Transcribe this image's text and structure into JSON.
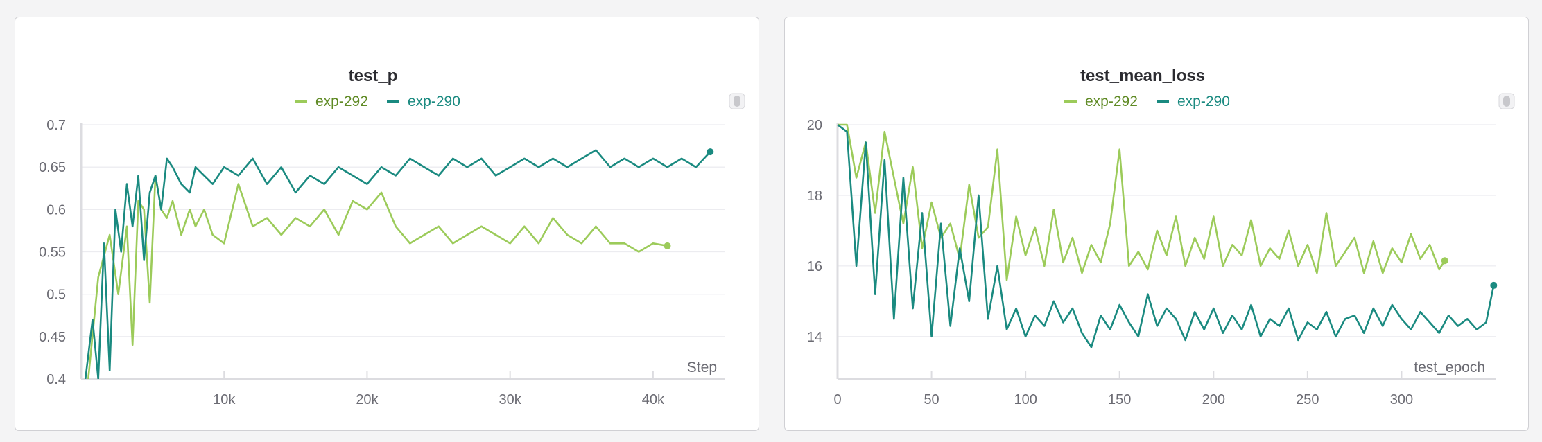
{
  "chart_data": [
    {
      "type": "line",
      "title": "test_p",
      "xlabel": "Step",
      "ylabel": "",
      "xlim": [
        0,
        45000
      ],
      "ylim": [
        0.4,
        0.7
      ],
      "x_ticks": [
        10000,
        20000,
        30000,
        40000
      ],
      "x_tick_labels": [
        "10k",
        "20k",
        "30k",
        "40k"
      ],
      "y_ticks": [
        0.4,
        0.45,
        0.5,
        0.55,
        0.6,
        0.65,
        0.7
      ],
      "y_tick_labels": [
        "0.4",
        "0.45",
        "0.5",
        "0.55",
        "0.6",
        "0.65",
        "0.7"
      ],
      "grid": true,
      "legend_position": "top-center",
      "series": [
        {
          "name": "exp-292",
          "color": "#9ccb5a",
          "x": [
            500,
            1200,
            2000,
            2600,
            3200,
            3600,
            4000,
            4400,
            4800,
            5200,
            5600,
            6000,
            6400,
            7000,
            7600,
            8000,
            8600,
            9200,
            10000,
            11000,
            12000,
            13000,
            14000,
            15000,
            16000,
            17000,
            18000,
            19000,
            20000,
            21000,
            22000,
            23000,
            24000,
            25000,
            26000,
            27000,
            28000,
            29000,
            30000,
            31000,
            32000,
            33000,
            34000,
            35000,
            36000,
            37000,
            38000,
            39000,
            40000,
            41000
          ],
          "y": [
            0.4,
            0.52,
            0.57,
            0.5,
            0.58,
            0.44,
            0.61,
            0.6,
            0.49,
            0.64,
            0.6,
            0.59,
            0.61,
            0.57,
            0.6,
            0.58,
            0.6,
            0.57,
            0.56,
            0.63,
            0.58,
            0.59,
            0.57,
            0.59,
            0.58,
            0.6,
            0.57,
            0.61,
            0.6,
            0.62,
            0.58,
            0.56,
            0.57,
            0.58,
            0.56,
            0.57,
            0.58,
            0.57,
            0.56,
            0.58,
            0.56,
            0.59,
            0.57,
            0.56,
            0.58,
            0.56,
            0.56,
            0.55,
            0.56,
            0.557
          ]
        },
        {
          "name": "exp-290",
          "color": "#1a8a80",
          "x": [
            300,
            800,
            1200,
            1600,
            2000,
            2400,
            2800,
            3200,
            3600,
            4000,
            4400,
            4800,
            5200,
            5600,
            6000,
            6400,
            7000,
            7600,
            8000,
            8600,
            9200,
            10000,
            11000,
            12000,
            13000,
            14000,
            15000,
            16000,
            17000,
            18000,
            19000,
            20000,
            21000,
            22000,
            23000,
            24000,
            25000,
            26000,
            27000,
            28000,
            29000,
            30000,
            31000,
            32000,
            33000,
            34000,
            35000,
            36000,
            37000,
            38000,
            39000,
            40000,
            41000,
            42000,
            43000,
            44000
          ],
          "y": [
            0.4,
            0.47,
            0.4,
            0.56,
            0.41,
            0.6,
            0.55,
            0.63,
            0.58,
            0.64,
            0.54,
            0.62,
            0.64,
            0.6,
            0.66,
            0.65,
            0.63,
            0.62,
            0.65,
            0.64,
            0.63,
            0.65,
            0.64,
            0.66,
            0.63,
            0.65,
            0.62,
            0.64,
            0.63,
            0.65,
            0.64,
            0.63,
            0.65,
            0.64,
            0.66,
            0.65,
            0.64,
            0.66,
            0.65,
            0.66,
            0.64,
            0.65,
            0.66,
            0.65,
            0.66,
            0.65,
            0.66,
            0.67,
            0.65,
            0.66,
            0.65,
            0.66,
            0.65,
            0.66,
            0.65,
            0.668
          ]
        }
      ]
    },
    {
      "type": "line",
      "title": "test_mean_loss",
      "xlabel": "test_epoch",
      "ylabel": "",
      "xlim": [
        0,
        350
      ],
      "ylim": [
        12.8,
        20
      ],
      "x_ticks": [
        0,
        50,
        100,
        150,
        200,
        250,
        300
      ],
      "x_tick_labels": [
        "0",
        "50",
        "100",
        "150",
        "200",
        "250",
        "300"
      ],
      "y_ticks": [
        14,
        16,
        18,
        20
      ],
      "y_tick_labels": [
        "14",
        "16",
        "18",
        "20"
      ],
      "grid": true,
      "legend_position": "top-center",
      "series": [
        {
          "name": "exp-292",
          "color": "#9ccb5a",
          "x": [
            0,
            5,
            10,
            15,
            20,
            25,
            30,
            35,
            40,
            45,
            50,
            55,
            60,
            65,
            70,
            75,
            80,
            85,
            90,
            95,
            100,
            105,
            110,
            115,
            120,
            125,
            130,
            135,
            140,
            145,
            150,
            155,
            160,
            165,
            170,
            175,
            180,
            185,
            190,
            195,
            200,
            205,
            210,
            215,
            220,
            225,
            230,
            235,
            240,
            245,
            250,
            255,
            260,
            265,
            270,
            275,
            280,
            285,
            290,
            295,
            300,
            305,
            310,
            315,
            320,
            323
          ],
          "y": [
            20,
            20,
            18.5,
            19.5,
            17.5,
            19.8,
            18.5,
            17.2,
            18.8,
            16.5,
            17.8,
            16.8,
            17.2,
            16.2,
            18.3,
            16.8,
            17.1,
            19.3,
            15.6,
            17.4,
            16.3,
            17.1,
            16.0,
            17.6,
            16.1,
            16.8,
            15.8,
            16.6,
            16.1,
            17.2,
            19.3,
            16.0,
            16.4,
            15.9,
            17.0,
            16.3,
            17.4,
            16.0,
            16.8,
            16.2,
            17.4,
            16.0,
            16.6,
            16.3,
            17.3,
            16.0,
            16.5,
            16.2,
            17.0,
            16.0,
            16.6,
            15.8,
            17.5,
            16.0,
            16.4,
            16.8,
            15.8,
            16.7,
            15.8,
            16.5,
            16.1,
            16.9,
            16.2,
            16.6,
            15.9,
            16.15
          ]
        },
        {
          "name": "exp-290",
          "color": "#1a8a80",
          "x": [
            0,
            5,
            10,
            15,
            20,
            25,
            30,
            35,
            40,
            45,
            50,
            55,
            60,
            65,
            70,
            75,
            80,
            85,
            90,
            95,
            100,
            105,
            110,
            115,
            120,
            125,
            130,
            135,
            140,
            145,
            150,
            155,
            160,
            165,
            170,
            175,
            180,
            185,
            190,
            195,
            200,
            205,
            210,
            215,
            220,
            225,
            230,
            235,
            240,
            245,
            250,
            255,
            260,
            265,
            270,
            275,
            280,
            285,
            290,
            295,
            300,
            305,
            310,
            315,
            320,
            325,
            330,
            335,
            340,
            345,
            349
          ],
          "y": [
            20,
            19.8,
            16.0,
            19.5,
            15.2,
            19.0,
            14.5,
            18.5,
            14.8,
            17.5,
            14.0,
            17.2,
            14.3,
            16.5,
            15.0,
            18.0,
            14.5,
            16.0,
            14.2,
            14.8,
            14.0,
            14.6,
            14.3,
            15.0,
            14.4,
            14.8,
            14.1,
            13.7,
            14.6,
            14.2,
            14.9,
            14.4,
            14.0,
            15.2,
            14.3,
            14.8,
            14.5,
            13.9,
            14.7,
            14.2,
            14.8,
            14.1,
            14.6,
            14.2,
            14.9,
            14.0,
            14.5,
            14.3,
            14.8,
            13.9,
            14.4,
            14.2,
            14.7,
            14.0,
            14.5,
            14.6,
            14.1,
            14.8,
            14.3,
            14.9,
            14.5,
            14.2,
            14.7,
            14.4,
            14.1,
            14.6,
            14.3,
            14.5,
            14.2,
            14.4,
            15.45
          ]
        }
      ]
    }
  ]
}
